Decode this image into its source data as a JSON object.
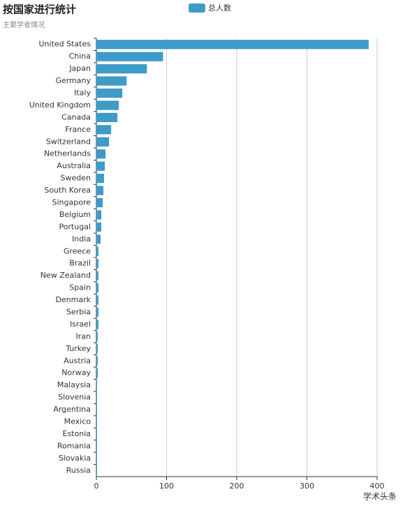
{
  "chart_data": {
    "type": "hbar",
    "title": "按国家进行统计",
    "subtitle": "主要学者情况",
    "categories": [
      "United States",
      "China",
      "Japan",
      "Germany",
      "Italy",
      "United Kingdom",
      "Canada",
      "France",
      "Switzerland",
      "Netherlands",
      "Australia",
      "Sweden",
      "South Korea",
      "Singapore",
      "Belgium",
      "Portugal",
      "India",
      "Greece",
      "Brazil",
      "New Zealand",
      "Spain",
      "Denmark",
      "Serbia",
      "Israel",
      "Iran",
      "Turkey",
      "Austria",
      "Norway",
      "Malaysia",
      "Slovenia",
      "Argentina",
      "Mexico",
      "Estonia",
      "Romania",
      "Slovakia",
      "Russia"
    ],
    "series": [
      {
        "name": "总人数",
        "color": "#3e9ac9",
        "values": [
          388,
          95,
          72,
          43,
          37,
          32,
          30,
          21,
          18,
          13,
          12,
          11,
          10,
          9,
          7,
          7,
          6,
          3,
          3,
          3,
          3,
          3,
          3,
          3,
          2,
          2,
          2,
          2,
          1,
          1,
          1,
          1,
          1,
          1,
          1,
          1
        ]
      }
    ],
    "xlim": [
      0,
      400
    ],
    "xticks": [
      0,
      100,
      200,
      300,
      400
    ],
    "grid": true,
    "watermark": "学术头条"
  }
}
